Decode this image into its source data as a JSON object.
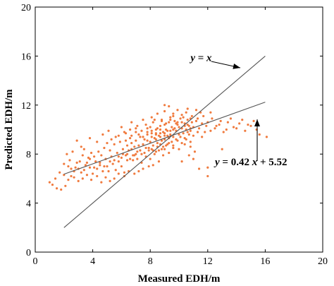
{
  "chart_data": {
    "type": "scatter",
    "xlabel": "Measured EDH/m",
    "ylabel": "Predicted EDH/m",
    "xlim": [
      0,
      20
    ],
    "ylim": [
      0,
      20
    ],
    "xticks": [
      0,
      4,
      8,
      12,
      16,
      20
    ],
    "yticks": [
      0,
      4,
      8,
      12,
      16,
      20
    ],
    "grid": false,
    "point_color": "#f07b3f",
    "line_color": "#555555",
    "lines": [
      {
        "slope": 1,
        "intercept": 0,
        "x_range": [
          2,
          16
        ]
      },
      {
        "slope": 0.42,
        "intercept": 5.52,
        "x_range": [
          2,
          16
        ]
      }
    ],
    "annotations": [
      {
        "id": "identity",
        "x": 10.8,
        "y": 15.6,
        "parts": [
          {
            "t": "y",
            "it": true
          },
          {
            "t": " = ",
            "it": false
          },
          {
            "t": "x",
            "it": true
          }
        ]
      },
      {
        "id": "fit",
        "x": 12.5,
        "y": 7.1,
        "parts": [
          {
            "t": "y",
            "it": true
          },
          {
            "t": " = 0.42 ",
            "it": false
          },
          {
            "t": "x",
            "it": true
          },
          {
            "t": " + 5.52",
            "it": false
          }
        ]
      }
    ],
    "points": [
      [
        1.0,
        5.7
      ],
      [
        1.2,
        5.5
      ],
      [
        1.5,
        5.2
      ],
      [
        1.8,
        5.1
      ],
      [
        2.1,
        5.4
      ],
      [
        2.5,
        6.2
      ],
      [
        2.7,
        6.6
      ],
      [
        2.8,
        6.9
      ],
      [
        3.0,
        6.8
      ],
      [
        3.1,
        7.4
      ],
      [
        3.4,
        6.7
      ],
      [
        3.6,
        7.3
      ],
      [
        3.8,
        6.9
      ],
      [
        4.0,
        6.4
      ],
      [
        4.2,
        7.4
      ],
      [
        4.3,
        6.8
      ],
      [
        4.5,
        7.1
      ],
      [
        4.7,
        6.6
      ],
      [
        4.9,
        7.6
      ],
      [
        5.0,
        7.0
      ],
      [
        5.1,
        6.6
      ],
      [
        5.3,
        7.8
      ],
      [
        5.4,
        7.2
      ],
      [
        5.6,
        6.7
      ],
      [
        5.8,
        7.4
      ],
      [
        6.0,
        7.0
      ],
      [
        6.2,
        6.5
      ],
      [
        2.9,
        9.1
      ],
      [
        3.4,
        8.4
      ],
      [
        3.8,
        9.3
      ],
      [
        4.3,
        9.0
      ],
      [
        4.7,
        9.6
      ],
      [
        5.1,
        9.9
      ],
      [
        5.6,
        9.4
      ],
      [
        6.0,
        10.2
      ],
      [
        6.3,
        9.7
      ],
      [
        6.7,
        10.6
      ],
      [
        7.1,
        10.3
      ],
      [
        7.5,
        10.8
      ],
      [
        7.8,
        10.1
      ],
      [
        8.1,
        11.0
      ],
      [
        8.5,
        11.3
      ],
      [
        8.8,
        10.7
      ],
      [
        9.0,
        11.5
      ],
      [
        9.3,
        11.9
      ],
      [
        9.6,
        11.1
      ],
      [
        9.9,
        11.6
      ],
      [
        10.2,
        11.2
      ],
      [
        10.5,
        11.4
      ],
      [
        10.8,
        10.9
      ],
      [
        6.5,
        8.3
      ],
      [
        6.7,
        8.9
      ],
      [
        6.8,
        7.9
      ],
      [
        6.9,
        8.6
      ],
      [
        7.0,
        9.1
      ],
      [
        7.1,
        8.2
      ],
      [
        7.2,
        8.7
      ],
      [
        7.3,
        9.4
      ],
      [
        7.4,
        8.0
      ],
      [
        7.5,
        8.8
      ],
      [
        7.6,
        9.2
      ],
      [
        7.7,
        8.5
      ],
      [
        7.8,
        9.6
      ],
      [
        7.9,
        8.3
      ],
      [
        8.0,
        9.0
      ],
      [
        8.1,
        9.7
      ],
      [
        8.2,
        8.7
      ],
      [
        8.3,
        9.3
      ],
      [
        8.4,
        10.0
      ],
      [
        8.5,
        8.9
      ],
      [
        8.6,
        9.5
      ],
      [
        8.7,
        10.3
      ],
      [
        8.8,
        9.1
      ],
      [
        8.9,
        9.8
      ],
      [
        9.0,
        10.4
      ],
      [
        9.0,
        9.2
      ],
      [
        9.1,
        10.0
      ],
      [
        9.2,
        9.5
      ],
      [
        9.3,
        10.6
      ],
      [
        9.4,
        9.9
      ],
      [
        9.5,
        10.2
      ],
      [
        9.6,
        9.4
      ],
      [
        9.7,
        10.7
      ],
      [
        9.8,
        9.9
      ],
      [
        9.9,
        10.4
      ],
      [
        10.0,
        9.6
      ],
      [
        10.1,
        10.9
      ],
      [
        10.2,
        10.1
      ],
      [
        10.3,
        9.7
      ],
      [
        10.4,
        10.5
      ],
      [
        10.5,
        10.0
      ],
      [
        10.6,
        10.8
      ],
      [
        10.7,
        10.3
      ],
      [
        10.8,
        9.9
      ],
      [
        10.9,
        10.6
      ],
      [
        11.0,
        10.2
      ],
      [
        11.2,
        10.7
      ],
      [
        11.4,
        10.1
      ],
      [
        11.6,
        10.5
      ],
      [
        11.8,
        9.8
      ],
      [
        8.2,
        10.6
      ],
      [
        8.5,
        10.1
      ],
      [
        8.8,
        10.8
      ],
      [
        9.1,
        10.5
      ],
      [
        9.4,
        11.0
      ],
      [
        9.7,
        10.1
      ],
      [
        9.0,
        9.7
      ],
      [
        9.3,
        9.3
      ],
      [
        8.7,
        9.4
      ],
      [
        8.4,
        9.6
      ],
      [
        5.2,
        8.3
      ],
      [
        5.5,
        8.8
      ],
      [
        5.7,
        8.1
      ],
      [
        5.9,
        9.0
      ],
      [
        6.1,
        8.4
      ],
      [
        6.3,
        9.1
      ],
      [
        6.4,
        8.0
      ],
      [
        6.6,
        9.3
      ],
      [
        4.8,
        8.5
      ],
      [
        4.6,
        7.9
      ],
      [
        4.4,
        8.2
      ],
      [
        4.1,
        7.8
      ],
      [
        3.9,
        8.1
      ],
      [
        3.7,
        7.7
      ],
      [
        3.3,
        7.9
      ],
      [
        3.2,
        8.6
      ],
      [
        2.6,
        8.2
      ],
      [
        2.4,
        7.5
      ],
      [
        2.2,
        8.0
      ],
      [
        2.0,
        7.2
      ],
      [
        5.0,
        8.9
      ],
      [
        5.3,
        9.2
      ],
      [
        5.8,
        9.5
      ],
      [
        6.2,
        9.8
      ],
      [
        6.6,
        10.0
      ],
      [
        7.0,
        10.1
      ],
      [
        7.4,
        9.9
      ],
      [
        7.7,
        10.4
      ],
      [
        8.0,
        10.2
      ],
      [
        8.3,
        10.8
      ],
      [
        6.8,
        7.5
      ],
      [
        7.1,
        7.6
      ],
      [
        7.4,
        7.3
      ],
      [
        7.7,
        7.8
      ],
      [
        8.0,
        7.6
      ],
      [
        8.3,
        8.0
      ],
      [
        8.6,
        8.3
      ],
      [
        8.9,
        8.6
      ],
      [
        9.2,
        8.8
      ],
      [
        9.5,
        9.0
      ],
      [
        9.8,
        9.2
      ],
      [
        10.1,
        9.4
      ],
      [
        10.4,
        9.3
      ],
      [
        10.7,
        9.6
      ],
      [
        11.0,
        9.5
      ],
      [
        11.3,
        9.8
      ],
      [
        11.6,
        9.4
      ],
      [
        11.9,
        10.3
      ],
      [
        12.2,
        9.9
      ],
      [
        12.5,
        10.1
      ],
      [
        12.8,
        10.4
      ],
      [
        13.1,
        9.8
      ],
      [
        13.4,
        10.6
      ],
      [
        13.8,
        10.2
      ],
      [
        14.2,
        10.5
      ],
      [
        14.6,
        9.9
      ],
      [
        15.0,
        10.3
      ],
      [
        15.4,
        10.0
      ],
      [
        11.0,
        7.6
      ],
      [
        11.4,
        6.8
      ],
      [
        10.7,
        7.9
      ],
      [
        12.0,
        6.9
      ],
      [
        10.2,
        7.4
      ],
      [
        12.0,
        6.2
      ],
      [
        13.0,
        8.4
      ],
      [
        11.5,
        11.4
      ],
      [
        11.2,
        11.6
      ],
      [
        12.2,
        11.4
      ],
      [
        10.6,
        11.7
      ],
      [
        9.0,
        12.0
      ],
      [
        11.1,
        8.2
      ],
      [
        10.8,
        8.6
      ],
      [
        10.4,
        8.8
      ],
      [
        10.0,
        8.4
      ],
      [
        9.6,
        8.5
      ],
      [
        9.3,
        8.1
      ],
      [
        8.9,
        7.9
      ],
      [
        8.6,
        7.4
      ],
      [
        8.2,
        7.1
      ],
      [
        7.9,
        7.0
      ],
      [
        7.5,
        6.8
      ],
      [
        7.2,
        6.6
      ],
      [
        6.9,
        6.4
      ],
      [
        6.5,
        6.6
      ],
      [
        6.2,
        6.2
      ],
      [
        5.8,
        6.4
      ],
      [
        5.5,
        6.0
      ],
      [
        5.2,
        5.8
      ],
      [
        4.9,
        6.1
      ],
      [
        4.6,
        5.7
      ],
      [
        4.3,
        6.2
      ],
      [
        3.9,
        5.9
      ],
      [
        3.6,
        6.3
      ],
      [
        3.3,
        6.0
      ],
      [
        3.0,
        5.8
      ],
      [
        2.7,
        6.1
      ],
      [
        2.3,
        5.9
      ],
      [
        2.0,
        6.3
      ],
      [
        1.7,
        6.5
      ],
      [
        1.4,
        6.0
      ],
      [
        9.4,
        10.8
      ],
      [
        9.6,
        11.3
      ],
      [
        9.9,
        10.6
      ],
      [
        10.3,
        11.0
      ],
      [
        10.6,
        10.4
      ],
      [
        10.9,
        11.1
      ],
      [
        11.3,
        10.9
      ],
      [
        11.7,
        11.1
      ],
      [
        12.0,
        10.6
      ],
      [
        12.3,
        10.9
      ],
      [
        12.6,
        10.3
      ],
      [
        12.9,
        10.7
      ],
      [
        13.3,
        10.0
      ],
      [
        13.6,
        10.9
      ],
      [
        14.0,
        10.1
      ],
      [
        14.4,
        10.8
      ],
      [
        14.8,
        10.4
      ],
      [
        15.2,
        10.7
      ],
      [
        15.6,
        9.6
      ],
      [
        16.1,
        9.4
      ],
      [
        8.1,
        8.4
      ],
      [
        8.4,
        8.2
      ],
      [
        8.7,
        8.8
      ],
      [
        9.0,
        8.4
      ],
      [
        9.3,
        8.9
      ],
      [
        9.6,
        8.7
      ],
      [
        9.9,
        9.1
      ],
      [
        10.2,
        8.9
      ],
      [
        10.5,
        9.2
      ],
      [
        10.8,
        9.0
      ],
      [
        7.0,
        8.0
      ],
      [
        7.3,
        8.3
      ],
      [
        7.6,
        8.1
      ],
      [
        7.9,
        8.5
      ],
      [
        8.2,
        8.3
      ],
      [
        8.5,
        8.6
      ],
      [
        8.8,
        8.4
      ],
      [
        9.1,
        8.7
      ],
      [
        6.0,
        7.7
      ],
      [
        6.3,
        7.9
      ],
      [
        6.6,
        7.6
      ],
      [
        6.9,
        7.9
      ],
      [
        5.5,
        7.5
      ],
      [
        5.8,
        7.8
      ],
      [
        6.1,
        8.0
      ],
      [
        6.4,
        7.5
      ],
      [
        4.5,
        7.3
      ],
      [
        4.8,
        7.0
      ],
      [
        5.2,
        7.4
      ],
      [
        3.5,
        7.1
      ],
      [
        3.8,
        7.6
      ],
      [
        4.1,
        6.9
      ],
      [
        2.9,
        7.3
      ],
      [
        3.2,
        6.5
      ],
      [
        2.5,
        6.8
      ],
      [
        2.3,
        7.0
      ],
      [
        7.8,
        9.1
      ],
      [
        8.1,
        9.4
      ],
      [
        8.4,
        9.2
      ],
      [
        8.7,
        9.7
      ],
      [
        9.0,
        9.5
      ],
      [
        9.2,
        9.9
      ],
      [
        9.4,
        9.6
      ],
      [
        9.6,
        10.0
      ],
      [
        9.8,
        10.5
      ],
      [
        10.0,
        10.2
      ],
      [
        10.2,
        10.6
      ],
      [
        10.4,
        10.3
      ],
      [
        10.6,
        9.8
      ],
      [
        10.8,
        10.1
      ],
      [
        7.2,
        9.6
      ],
      [
        7.5,
        9.4
      ],
      [
        7.8,
        9.8
      ],
      [
        8.1,
        9.9
      ],
      [
        8.4,
        9.7
      ],
      [
        8.7,
        10.0
      ],
      [
        6.7,
        9.5
      ],
      [
        7.0,
        9.8
      ],
      [
        6.4,
        8.7
      ],
      [
        6.7,
        8.4
      ]
    ]
  }
}
